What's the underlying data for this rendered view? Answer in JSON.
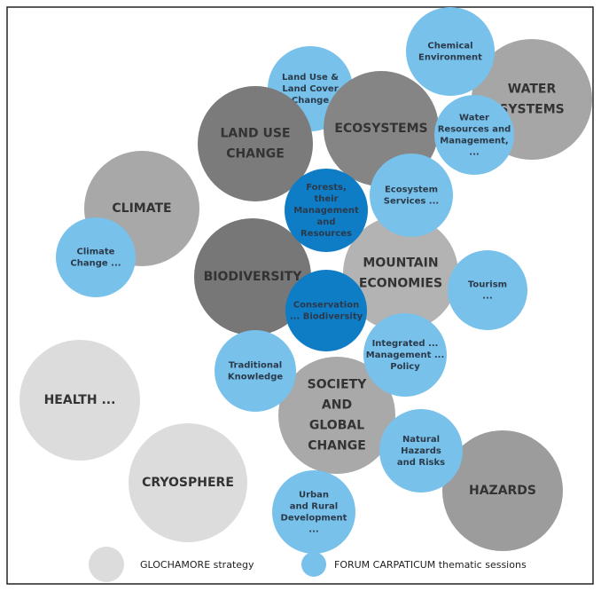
{
  "nodes": [
    {
      "lines": [
        "WATER",
        "SYSTEMS"
      ]
    },
    {
      "lines": [
        "Chemical",
        "Environment"
      ]
    },
    {
      "lines": [
        "Land Use &",
        "Land Cover",
        "Change"
      ]
    },
    {
      "lines": [
        "ECOSYSTEMS"
      ]
    },
    {
      "lines": [
        "LAND USE",
        "CHANGE"
      ]
    },
    {
      "lines": [
        "CLIMATE"
      ]
    },
    {
      "lines": [
        "MOUNTAIN",
        "ECONOMIES"
      ]
    },
    {
      "lines": [
        "BIODIVERSITY"
      ]
    },
    {
      "lines": [
        "SOCIETY",
        "AND",
        "GLOBAL",
        "CHANGE"
      ]
    },
    {
      "lines": [
        "HEALTH ..."
      ]
    },
    {
      "lines": [
        "CRYOSPHERE"
      ]
    },
    {
      "lines": [
        "HAZARDS"
      ]
    },
    {
      "lines": [
        "Water",
        "Resources and",
        "Management,",
        "..."
      ]
    },
    {
      "lines": [
        "Ecosystem",
        "Services ..."
      ]
    },
    {
      "lines": [
        "Climate",
        "Change ..."
      ]
    },
    {
      "lines": [
        "Tourism",
        "..."
      ]
    },
    {
      "lines": [
        "Traditional",
        "Knowledge"
      ]
    },
    {
      "lines": [
        "Integrated ...",
        "Management ...",
        "Policy"
      ]
    },
    {
      "lines": [
        "Natural",
        "Hazards",
        "and Risks"
      ]
    },
    {
      "lines": [
        "Urban",
        "and Rural",
        "Development",
        "..."
      ]
    },
    {
      "lines": [
        "Forests,",
        "their",
        "Management",
        "and",
        "Resources"
      ]
    },
    {
      "lines": [
        "Conservation",
        "... Biodiversity"
      ]
    }
  ],
  "legend": [
    "GLOCHAMORE strategy",
    "FORUM CARPATICUM thematic sessions"
  ]
}
